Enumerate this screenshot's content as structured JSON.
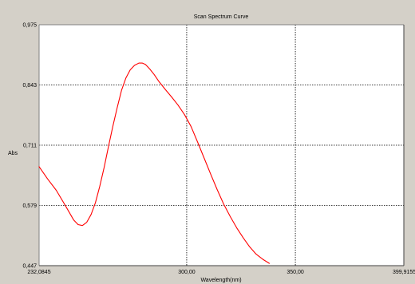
{
  "chart_data": {
    "type": "line",
    "title": "Scan Spectrum Curve",
    "xlabel": "Wavelength(nm)",
    "ylabel": "Abs",
    "xlim": [
      232.0845,
      399.9155
    ],
    "ylim": [
      0.447,
      0.975
    ],
    "x_tick_labels": [
      "232,0845",
      "300,00",
      "350,00",
      "399,9155"
    ],
    "x_tick_values": [
      232.0845,
      300,
      350,
      399.9155
    ],
    "y_tick_labels": [
      "0,975",
      "0,843",
      "0,711",
      "0,579",
      "0,447"
    ],
    "y_tick_values": [
      0.975,
      0.843,
      0.711,
      0.579,
      0.447
    ],
    "grid": true,
    "colors": {
      "plot_background": "#ffffff",
      "window_background": "#d4d0c8",
      "series": "#ff0000",
      "grid": "#000000"
    },
    "series": [
      {
        "x": [
          232.08,
          236,
          240,
          244,
          248,
          250,
          252,
          254,
          256,
          258,
          260,
          262,
          264,
          266,
          268,
          270,
          272,
          274,
          276,
          278,
          279.5,
          281,
          283,
          285,
          287,
          290,
          293,
          296,
          299,
          302,
          305,
          308,
          311,
          314,
          317,
          320,
          323,
          326,
          329,
          332,
          335,
          338
        ],
        "y": [
          0.664,
          0.637,
          0.612,
          0.58,
          0.547,
          0.537,
          0.535,
          0.542,
          0.559,
          0.585,
          0.621,
          0.662,
          0.708,
          0.752,
          0.793,
          0.831,
          0.858,
          0.876,
          0.886,
          0.891,
          0.891,
          0.888,
          0.878,
          0.866,
          0.852,
          0.834,
          0.817,
          0.799,
          0.778,
          0.752,
          0.718,
          0.683,
          0.648,
          0.614,
          0.582,
          0.555,
          0.53,
          0.508,
          0.488,
          0.472,
          0.461,
          0.452
        ]
      }
    ]
  }
}
